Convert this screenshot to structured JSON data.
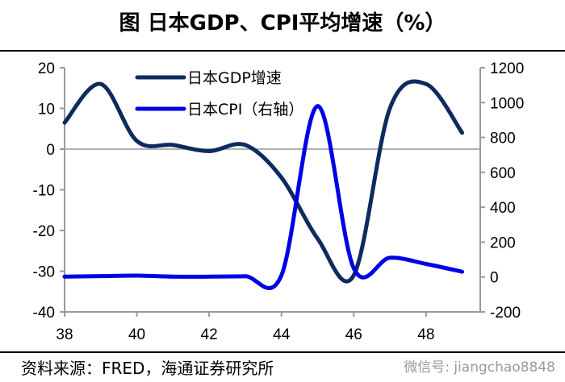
{
  "header": {
    "title": "图 日本GDP、CPI平均增速（%）"
  },
  "footer": {
    "source": "资料来源：FRED，海通证券研究所",
    "watermark": "微信号: jiangchao8848"
  },
  "chart_data": {
    "type": "line",
    "title": "图 日本GDP、CPI平均增速（%）",
    "x": [
      38,
      39,
      40,
      41,
      42,
      43,
      44,
      45,
      46,
      47,
      48,
      49
    ],
    "xticks": [
      38,
      40,
      42,
      44,
      46,
      48
    ],
    "xlim": [
      38,
      49.5
    ],
    "left_axis": {
      "ylim": [
        -40,
        20
      ],
      "ticks": [
        -40,
        -30,
        -20,
        -10,
        0,
        10,
        20
      ]
    },
    "right_axis": {
      "ylim": [
        -200,
        1200
      ],
      "ticks": [
        -200,
        0,
        200,
        400,
        600,
        800,
        1000,
        1200
      ]
    },
    "grid": false,
    "zero_line": true,
    "legend_position": "top-center",
    "series": [
      {
        "name": "日本GDP增速",
        "axis": "left",
        "color": "#0d2b5e",
        "values": [
          6.5,
          16,
          2,
          1,
          -0.5,
          1,
          -7,
          -22,
          -31,
          10,
          16,
          4
        ]
      },
      {
        "name": "日本CPI（右轴）",
        "axis": "right",
        "color": "#0000e6",
        "values": [
          2,
          5,
          8,
          2,
          2,
          4,
          10,
          980,
          50,
          110,
          75,
          30
        ]
      }
    ]
  }
}
